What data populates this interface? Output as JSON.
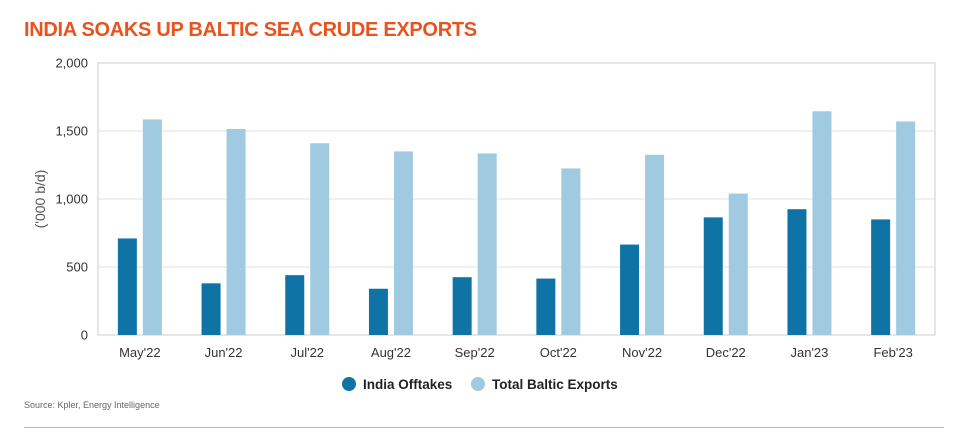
{
  "title": "INDIA SOAKS UP BALTIC SEA CRUDE EXPORTS",
  "source": "Source: Kpler, Energy Intelligence",
  "colors": {
    "title": "#e8531f",
    "india": "#0f73a6",
    "baltic": "#9fcae0",
    "grid": "#e2e2e2",
    "frame": "#cccccc"
  },
  "chart_data": {
    "type": "bar",
    "ylabel": "('000 b/d)",
    "xlabel": "",
    "ylim": [
      0,
      2000
    ],
    "yticks": [
      0,
      500,
      1000,
      1500,
      2000
    ],
    "ytick_labels": [
      "0",
      "500",
      "1,000",
      "1,500",
      "2,000"
    ],
    "grid": true,
    "legend_position": "bottom-center",
    "categories": [
      "May'22",
      "Jun'22",
      "Jul'22",
      "Aug'22",
      "Sep'22",
      "Oct'22",
      "Nov'22",
      "Dec'22",
      "Jan'23",
      "Feb'23"
    ],
    "series": [
      {
        "name": "India Offtakes",
        "color": "#0f73a6",
        "values": [
          710,
          380,
          440,
          340,
          425,
          415,
          665,
          865,
          925,
          850
        ]
      },
      {
        "name": "Total Baltic Exports",
        "color": "#9fcae0",
        "values": [
          1585,
          1515,
          1410,
          1350,
          1335,
          1225,
          1325,
          1040,
          1645,
          1570
        ]
      }
    ]
  }
}
